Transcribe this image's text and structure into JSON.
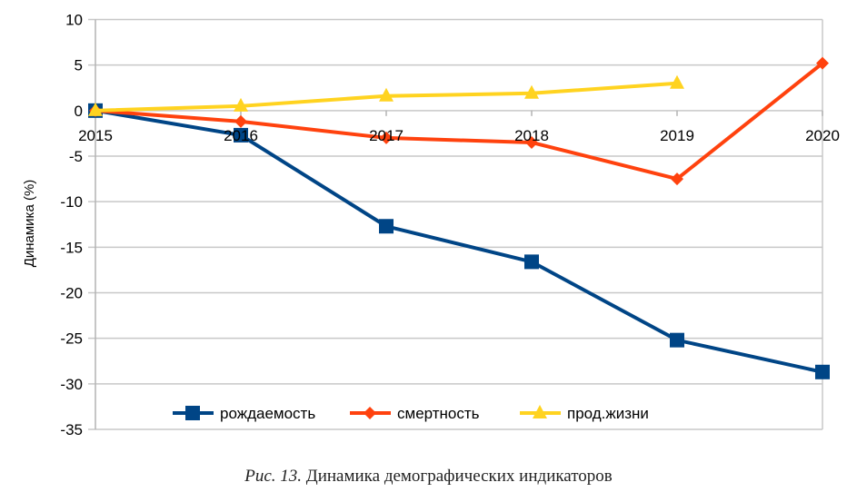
{
  "chart_data": {
    "type": "line",
    "title": "",
    "xlabel": "",
    "ylabel": "Динамика (%)",
    "categories": [
      "2015",
      "2016",
      "2017",
      "2018",
      "2019",
      "2020"
    ],
    "ylim": [
      -35,
      10
    ],
    "yticks": [
      10,
      5,
      0,
      -5,
      -10,
      -15,
      -20,
      -25,
      -30,
      -35
    ],
    "grid": "horizontal",
    "legend_position": "bottom",
    "series": [
      {
        "name": "рождаемость",
        "color": "#004586",
        "marker": "square",
        "values": [
          0,
          -2.7,
          -12.7,
          -16.6,
          -25.2,
          -28.7
        ]
      },
      {
        "name": "смертность",
        "color": "#ff420e",
        "marker": "diamond",
        "values": [
          0,
          -1.2,
          -3.0,
          -3.5,
          -7.5,
          5.2
        ]
      },
      {
        "name": "прод.жизни",
        "color": "#ffd320",
        "marker": "triangle",
        "values": [
          0,
          0.5,
          1.6,
          1.9,
          3.0,
          null
        ]
      }
    ]
  },
  "caption": {
    "prefix": "Рис. 13.",
    "text": " Динамика демографических индикаторов"
  }
}
